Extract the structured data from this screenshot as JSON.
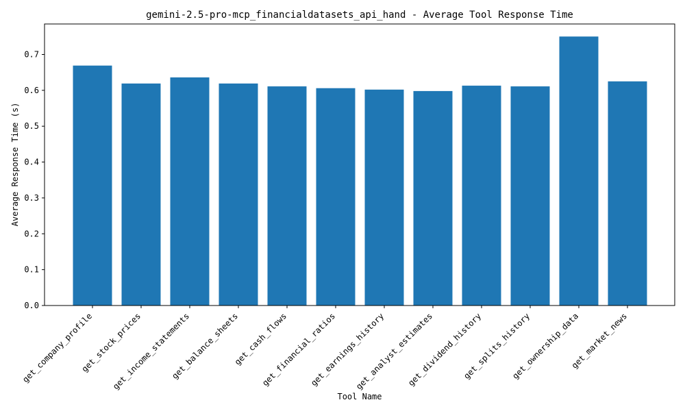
{
  "chart_data": {
    "type": "bar",
    "title": "gemini-2.5-pro-mcp_financialdatasets_api_hand - Average Tool Response Time",
    "xlabel": "Tool Name",
    "ylabel": "Average Response Time (s)",
    "ylim": [
      0,
      0.785
    ],
    "yticks": [
      0.0,
      0.1,
      0.2,
      0.3,
      0.4,
      0.5,
      0.6,
      0.7
    ],
    "ytick_labels": [
      "0.0",
      "0.1",
      "0.2",
      "0.3",
      "0.4",
      "0.5",
      "0.6",
      "0.7"
    ],
    "grid": false,
    "bar_color": "#1f77b4",
    "categories": [
      "get_company_profile",
      "get_stock_prices",
      "get_income_statements",
      "get_balance_sheets",
      "get_cash_flows",
      "get_financial_ratios",
      "get_earnings_history",
      "get_analyst_estimates",
      "get_dividend_history",
      "get_splits_history",
      "get_ownership_data",
      "get_market_news"
    ],
    "values": [
      0.669,
      0.619,
      0.636,
      0.619,
      0.611,
      0.606,
      0.602,
      0.598,
      0.613,
      0.611,
      0.75,
      0.625
    ]
  }
}
